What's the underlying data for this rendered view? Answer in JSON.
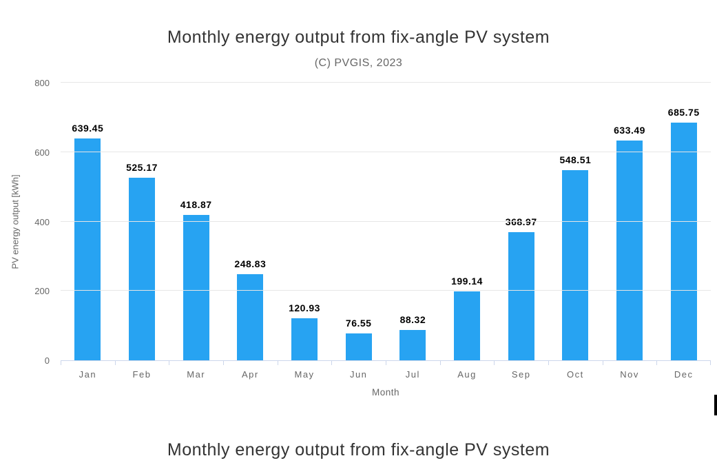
{
  "chart_data": {
    "type": "bar",
    "title": "Monthly energy output from fix-angle PV system",
    "subtitle": "(C) PVGIS, 2023",
    "categories": [
      "Jan",
      "Feb",
      "Mar",
      "Apr",
      "May",
      "Jun",
      "Jul",
      "Aug",
      "Sep",
      "Oct",
      "Nov",
      "Dec"
    ],
    "values": [
      639.45,
      525.17,
      418.87,
      248.83,
      120.93,
      76.55,
      88.32,
      199.14,
      368.97,
      548.51,
      633.49,
      685.75
    ],
    "data_labels": [
      "639.45",
      "525.17",
      "418.87",
      "248.83",
      "120.93",
      "76.55",
      "88.32",
      "199.14",
      "368.97",
      "548.51",
      "633.49",
      "685.75"
    ],
    "xlabel": "Month",
    "ylabel": "PV energy output [kWh]",
    "ylim": [
      0,
      800
    ],
    "yticks": [
      0,
      200,
      400,
      600,
      800
    ],
    "grid": true,
    "legend": "none"
  },
  "second_chart": {
    "title": "Monthly energy output from fix-angle PV system"
  },
  "colors": {
    "bar": "#27a3f2",
    "grid_line": "#e6e6e6",
    "axis_line": "#ccd6eb",
    "title_text": "#333333",
    "axis_text": "#666666",
    "data_label_text": "#000000",
    "clipped_element": "#000000"
  }
}
